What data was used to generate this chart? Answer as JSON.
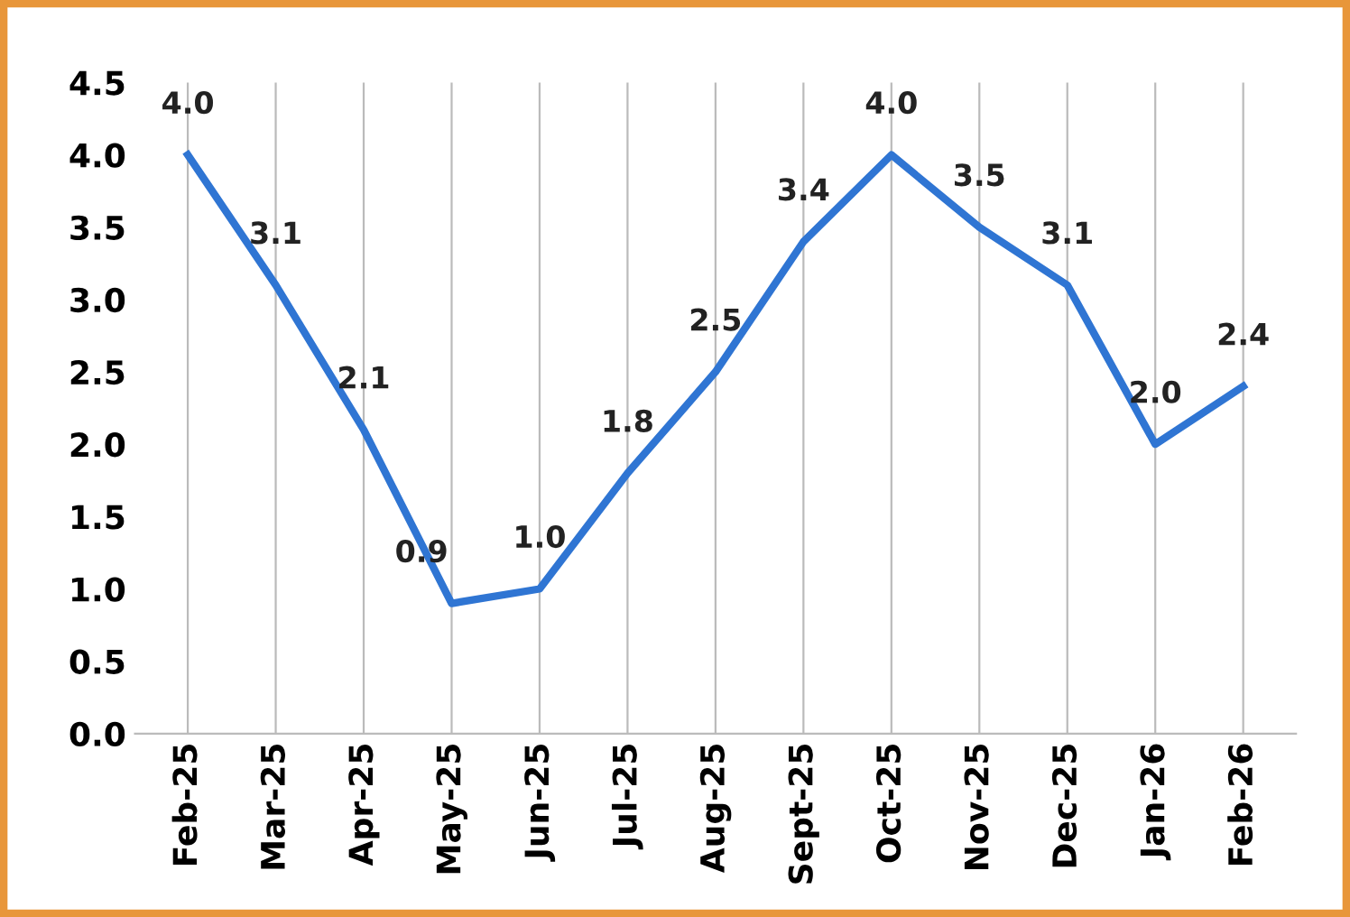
{
  "chart_data": {
    "type": "line",
    "categories": [
      "Feb-25",
      "Mar-25",
      "Apr-25",
      "May-25",
      "Jun-25",
      "Jul-25",
      "Aug-25",
      "Sept-25",
      "Oct-25",
      "Nov-25",
      "Dec-25",
      "Jan-26",
      "Feb-26"
    ],
    "series": [
      {
        "color": "#2f75d3",
        "values": [
          4.0,
          3.1,
          2.1,
          0.9,
          1.0,
          1.8,
          2.5,
          3.4,
          4.0,
          3.5,
          3.1,
          2.0,
          2.4
        ],
        "value_labels": [
          "4.0",
          "3.1",
          "2.1",
          "0.9",
          "1.0",
          "1.8",
          "2.5",
          "3.4",
          "4.0",
          "3.5",
          "3.1",
          "2.0",
          "2.4"
        ]
      }
    ],
    "ylim": [
      0,
      4.5
    ],
    "yticks": [
      {
        "value": 0,
        "label": "0.0"
      },
      {
        "value": 0.5,
        "label": "0.5"
      },
      {
        "value": 1,
        "label": "1.0"
      },
      {
        "value": 1.5,
        "label": "1.5"
      },
      {
        "value": 2,
        "label": "2.0"
      },
      {
        "value": 2.5,
        "label": "2.5"
      },
      {
        "value": 3,
        "label": "3.0"
      },
      {
        "value": 3.5,
        "label": "3.5"
      },
      {
        "value": 4,
        "label": "4.0"
      },
      {
        "value": 4.5,
        "label": "4.5"
      }
    ],
    "grid": "x",
    "marker": "none",
    "line_style": "solid",
    "legend": false
  }
}
